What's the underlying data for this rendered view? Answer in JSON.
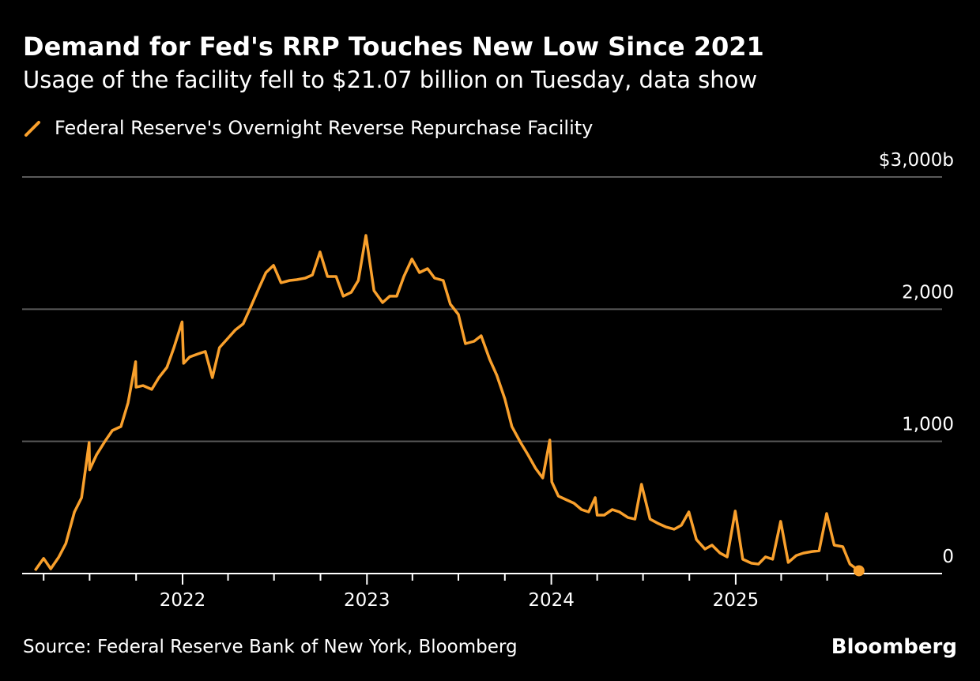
{
  "chart_data": {
    "type": "line",
    "title": "Demand for Fed's RRP Touches New Low Since 2021",
    "subtitle": "Usage of the facility fell to $21.07 billion on Tuesday, data show",
    "source": "Source: Federal Reserve Bank of New York, Bloomberg",
    "brand": "Bloomberg",
    "ylim": [
      0,
      3000
    ],
    "yticks": [
      0,
      1000,
      2000,
      3000
    ],
    "ytick_labels": [
      "0",
      "1,000",
      "2,000",
      "$3,000b"
    ],
    "xtick_labels": [
      "2022",
      "2023",
      "2024",
      "2025"
    ],
    "grid": true,
    "legend_placement": "top-left",
    "colors": {
      "series": "#f9a02c",
      "grid": "#5a5a5a",
      "axis": "#ffffff"
    },
    "series": [
      {
        "name": "Federal Reserve's Overnight Reverse Repurchase Facility",
        "points": [
          [
            "2021-03-15",
            24
          ],
          [
            "2021-04-01",
            115
          ],
          [
            "2021-04-15",
            36
          ],
          [
            "2021-05-01",
            125
          ],
          [
            "2021-05-15",
            227
          ],
          [
            "2021-06-01",
            466
          ],
          [
            "2021-06-15",
            574
          ],
          [
            "2021-06-30",
            991
          ],
          [
            "2021-07-01",
            785
          ],
          [
            "2021-07-15",
            900
          ],
          [
            "2021-08-01",
            1004
          ],
          [
            "2021-08-15",
            1082
          ],
          [
            "2021-09-01",
            1112
          ],
          [
            "2021-09-15",
            1291
          ],
          [
            "2021-09-30",
            1602
          ],
          [
            "2021-10-01",
            1410
          ],
          [
            "2021-10-15",
            1422
          ],
          [
            "2021-11-01",
            1393
          ],
          [
            "2021-11-15",
            1482
          ],
          [
            "2021-12-01",
            1560
          ],
          [
            "2021-12-15",
            1709
          ],
          [
            "2021-12-31",
            1904
          ],
          [
            "2022-01-03",
            1590
          ],
          [
            "2022-01-15",
            1638
          ],
          [
            "2022-02-01",
            1662
          ],
          [
            "2022-02-15",
            1680
          ],
          [
            "2022-03-01",
            1482
          ],
          [
            "2022-03-15",
            1709
          ],
          [
            "2022-04-01",
            1781
          ],
          [
            "2022-04-15",
            1841
          ],
          [
            "2022-05-01",
            1889
          ],
          [
            "2022-05-15",
            2008
          ],
          [
            "2022-06-01",
            2158
          ],
          [
            "2022-06-15",
            2277
          ],
          [
            "2022-06-30",
            2331
          ],
          [
            "2022-07-15",
            2200
          ],
          [
            "2022-08-01",
            2217
          ],
          [
            "2022-08-15",
            2223
          ],
          [
            "2022-09-01",
            2235
          ],
          [
            "2022-09-15",
            2259
          ],
          [
            "2022-09-30",
            2433
          ],
          [
            "2022-10-15",
            2247
          ],
          [
            "2022-11-01",
            2247
          ],
          [
            "2022-11-15",
            2098
          ],
          [
            "2022-12-01",
            2128
          ],
          [
            "2022-12-15",
            2217
          ],
          [
            "2022-12-30",
            2558
          ],
          [
            "2023-01-15",
            2140
          ],
          [
            "2023-02-01",
            2050
          ],
          [
            "2023-02-15",
            2098
          ],
          [
            "2023-03-01",
            2098
          ],
          [
            "2023-03-15",
            2247
          ],
          [
            "2023-03-31",
            2379
          ],
          [
            "2023-04-15",
            2277
          ],
          [
            "2023-05-01",
            2307
          ],
          [
            "2023-05-15",
            2235
          ],
          [
            "2023-06-01",
            2217
          ],
          [
            "2023-06-15",
            2038
          ],
          [
            "2023-07-01",
            1960
          ],
          [
            "2023-07-15",
            1739
          ],
          [
            "2023-08-01",
            1757
          ],
          [
            "2023-08-15",
            1799
          ],
          [
            "2023-09-01",
            1620
          ],
          [
            "2023-09-15",
            1500
          ],
          [
            "2023-10-01",
            1321
          ],
          [
            "2023-10-15",
            1112
          ],
          [
            "2023-11-01",
            992
          ],
          [
            "2023-11-15",
            903
          ],
          [
            "2023-12-01",
            795
          ],
          [
            "2023-12-15",
            723
          ],
          [
            "2023-12-29",
            1010
          ],
          [
            "2024-01-02",
            693
          ],
          [
            "2024-01-15",
            586
          ],
          [
            "2024-02-01",
            556
          ],
          [
            "2024-02-15",
            532
          ],
          [
            "2024-03-01",
            484
          ],
          [
            "2024-03-15",
            466
          ],
          [
            "2024-03-28",
            574
          ],
          [
            "2024-04-01",
            442
          ],
          [
            "2024-04-15",
            442
          ],
          [
            "2024-05-01",
            484
          ],
          [
            "2024-05-15",
            466
          ],
          [
            "2024-06-01",
            424
          ],
          [
            "2024-06-15",
            412
          ],
          [
            "2024-06-28",
            675
          ],
          [
            "2024-07-15",
            412
          ],
          [
            "2024-08-01",
            377
          ],
          [
            "2024-08-15",
            353
          ],
          [
            "2024-09-01",
            335
          ],
          [
            "2024-09-15",
            365
          ],
          [
            "2024-09-30",
            466
          ],
          [
            "2024-10-15",
            257
          ],
          [
            "2024-11-01",
            185
          ],
          [
            "2024-11-15",
            215
          ],
          [
            "2024-12-01",
            155
          ],
          [
            "2024-12-15",
            126
          ],
          [
            "2024-12-31",
            473
          ],
          [
            "2025-01-15",
            108
          ],
          [
            "2025-02-01",
            78
          ],
          [
            "2025-02-15",
            72
          ],
          [
            "2025-03-01",
            126
          ],
          [
            "2025-03-15",
            108
          ],
          [
            "2025-03-31",
            395
          ],
          [
            "2025-04-15",
            84
          ],
          [
            "2025-05-01",
            137
          ],
          [
            "2025-05-15",
            155
          ],
          [
            "2025-06-01",
            167
          ],
          [
            "2025-06-15",
            173
          ],
          [
            "2025-06-30",
            454
          ],
          [
            "2025-07-15",
            215
          ],
          [
            "2025-08-01",
            203
          ],
          [
            "2025-08-15",
            72
          ],
          [
            "2025-09-02",
            21.07
          ]
        ]
      }
    ]
  }
}
